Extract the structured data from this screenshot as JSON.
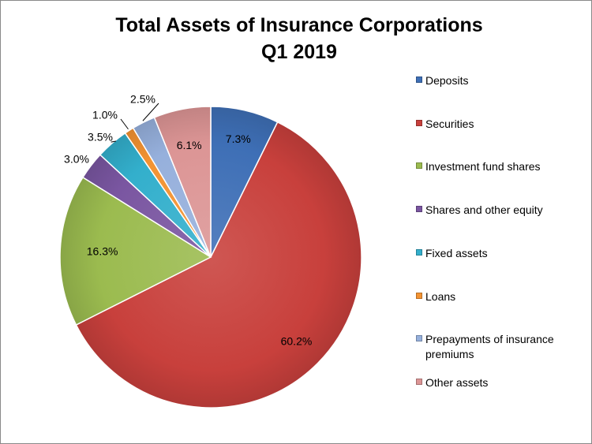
{
  "chart_data": {
    "type": "pie",
    "title": [
      "Total Assets of Insurance Corporations",
      "Q1 2019"
    ],
    "start_angle_deg": 0,
    "direction": "clockwise",
    "legend_position": "right",
    "slices": [
      {
        "label": "Deposits",
        "value": 7.3,
        "value_label": "7.3%",
        "color": "#3E6FB6"
      },
      {
        "label": "Securities",
        "value": 60.2,
        "value_label": "60.2%",
        "color": "#C8403C"
      },
      {
        "label": "Investment fund shares",
        "value": 16.3,
        "value_label": "16.3%",
        "color": "#9BBB4F"
      },
      {
        "label": "Shares and other equity",
        "value": 3.0,
        "value_label": "3.0%",
        "color": "#7A56A1"
      },
      {
        "label": "Fixed assets",
        "value": 3.5,
        "value_label": "3.5%",
        "color": "#33AFCC"
      },
      {
        "label": "Loans",
        "value": 1.0,
        "value_label": "1.0%",
        "color": "#F39332"
      },
      {
        "label": "Prepayments of insurance premiums",
        "value": 2.5,
        "value_label": "2.5%",
        "color": "#96B0DC"
      },
      {
        "label": "Other assets",
        "value": 6.1,
        "value_label": "6.1%",
        "color": "#DC9595"
      }
    ]
  }
}
